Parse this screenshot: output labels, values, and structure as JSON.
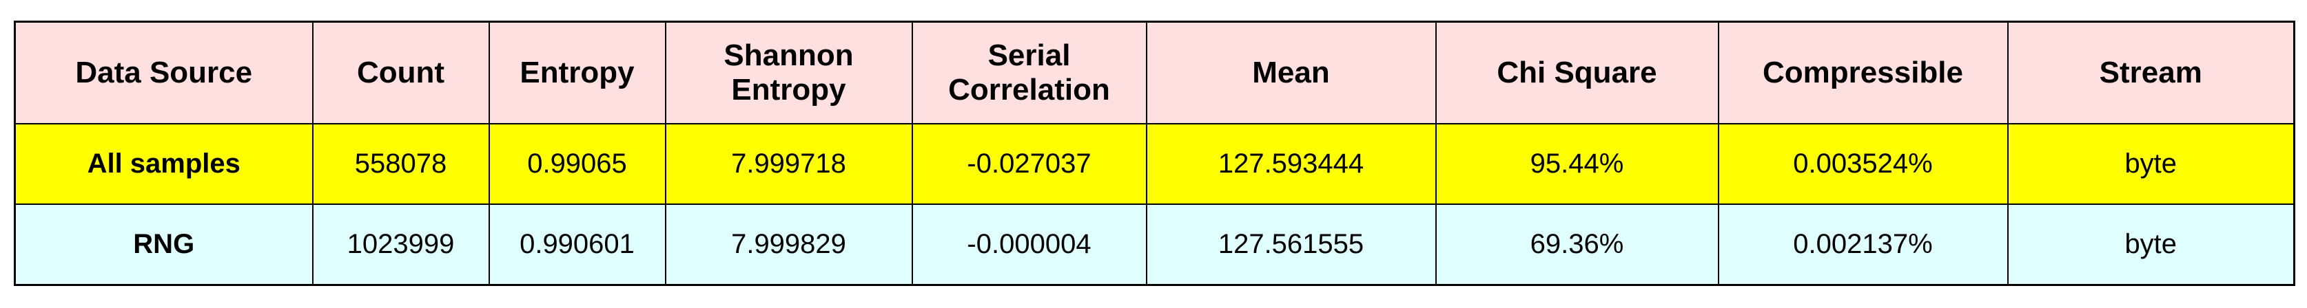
{
  "table": {
    "headers": [
      "Data Source",
      "Count",
      "Entropy",
      "Shannon Entropy",
      "Serial Correlation",
      "Mean",
      "Chi Square",
      "Compressible",
      "Stream"
    ],
    "rows": [
      {
        "label": "All samples",
        "background": "#ffff00",
        "cells": [
          "558078",
          "0.99065",
          "7.999718",
          "-0.027037",
          "127.593444",
          "95.44%",
          "0.003524%",
          "byte"
        ]
      },
      {
        "label": "RNG",
        "background": "#e0ffff",
        "cells": [
          "1023999",
          "0.990601",
          "7.999829",
          "-0.000004",
          "127.561555",
          "69.36%",
          "0.002137%",
          "byte"
        ]
      }
    ]
  },
  "colors": {
    "header_background": "#ffe0e0",
    "border": "#000000"
  }
}
